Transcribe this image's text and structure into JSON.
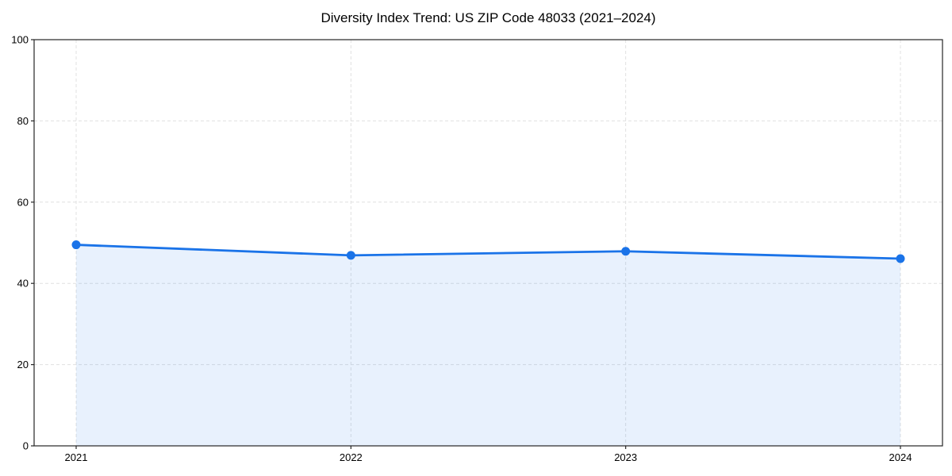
{
  "chart_data": {
    "type": "line",
    "title": "Diversity Index Trend: US ZIP Code 48033 (2021–2024)",
    "x": [
      "2021",
      "2022",
      "2023",
      "2024"
    ],
    "series": [
      {
        "name": "Diversity Index",
        "values": [
          49.5,
          46.9,
          47.9,
          46.1
        ]
      }
    ],
    "xlabel": "",
    "ylabel": "",
    "ylim": [
      0,
      100
    ],
    "yticks": [
      0,
      20,
      40,
      60,
      80,
      100
    ],
    "grid": true,
    "grid_style": "dashed",
    "legend_position": "none",
    "marker": "circle",
    "fill_under_line": true,
    "fill_opacity": 0.1,
    "line_color": "#1a73e8",
    "grid_color": "#e0e0e0",
    "spine_color": "#262626",
    "text_color": "#000000",
    "background_color": "#ffffff"
  }
}
